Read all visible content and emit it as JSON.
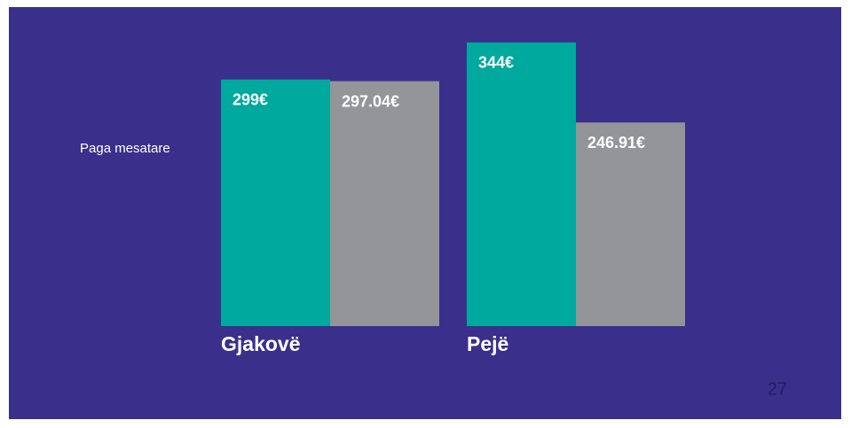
{
  "chart_data": {
    "type": "bar",
    "ylabel": "Paga mesatare",
    "categories": [
      "Gjakovë",
      "Pejë"
    ],
    "series": [
      {
        "color": "#00a99d",
        "values": [
          299,
          344
        ],
        "value_labels": [
          "299€",
          "344€"
        ]
      },
      {
        "color": "#939598",
        "values": [
          297.04,
          246.91
        ],
        "value_labels": [
          "297.04€",
          "246.91€"
        ]
      }
    ],
    "ylim": [
      0,
      360
    ]
  },
  "page_number": "27"
}
